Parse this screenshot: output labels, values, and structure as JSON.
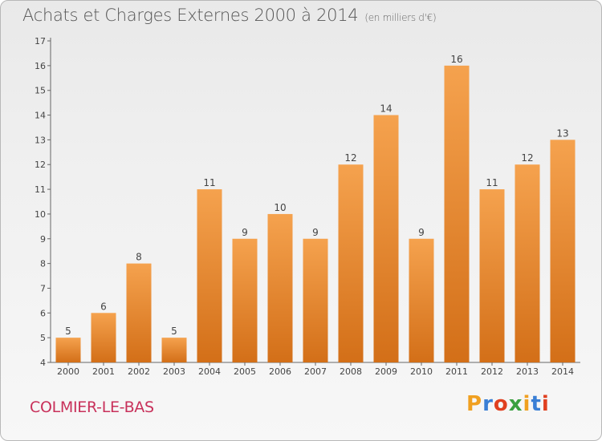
{
  "title": "Achats et Charges Externes 2000 à 2014",
  "unit": "(en milliers d'€)",
  "town": "COLMIER-LE-BAS",
  "brand": "Proxiti",
  "colors": {
    "bar_light": "#f5a24e",
    "bar_dark": "#d36f18",
    "title": "#555555",
    "town": "#c8305a",
    "brand_letters": [
      "#f0a020",
      "#3a7fd5",
      "#e04020",
      "#3aa040",
      "#f0a020",
      "#3a7fd5",
      "#e04020"
    ]
  },
  "chart_data": {
    "type": "bar",
    "categories": [
      "2000",
      "2001",
      "2002",
      "2003",
      "2004",
      "2005",
      "2006",
      "2007",
      "2008",
      "2009",
      "2010",
      "2011",
      "2012",
      "2013",
      "2014"
    ],
    "values": [
      5,
      6,
      8,
      5,
      11,
      9,
      10,
      9,
      12,
      14,
      9,
      16,
      11,
      12,
      13
    ],
    "ylim": [
      4,
      17
    ],
    "yticks": [
      4,
      5,
      6,
      7,
      8,
      9,
      10,
      11,
      12,
      13,
      14,
      15,
      16,
      17
    ],
    "grid": false,
    "data_labels": true
  }
}
